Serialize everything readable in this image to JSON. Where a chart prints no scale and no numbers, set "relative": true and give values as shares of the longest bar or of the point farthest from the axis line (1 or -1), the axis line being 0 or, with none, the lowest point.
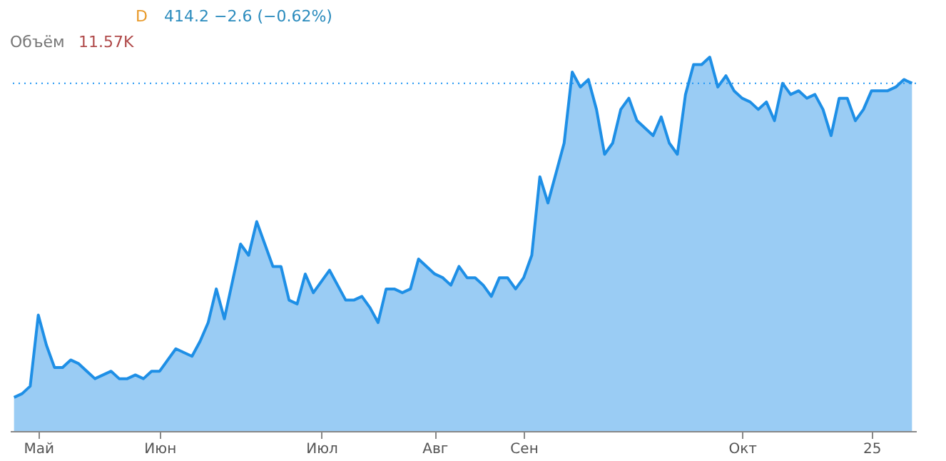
{
  "chart_data": {
    "type": "area",
    "title": "414.2 −2.6 (−0.62%)",
    "annotations": [
      "D",
      "Объём",
      "11.57K"
    ],
    "relative": true,
    "categories": [
      null,
      null,
      null,
      "Май",
      null,
      null,
      null,
      null,
      null,
      null,
      null,
      null,
      null,
      null,
      null,
      null,
      null,
      null,
      "Июн",
      null,
      null,
      null,
      null,
      null,
      null,
      null,
      null,
      null,
      null,
      null,
      null,
      null,
      null,
      null,
      null,
      null,
      null,
      null,
      "Июл",
      null,
      null,
      null,
      null,
      null,
      null,
      null,
      null,
      null,
      null,
      null,
      null,
      null,
      "Авг",
      null,
      null,
      null,
      null,
      null,
      null,
      null,
      null,
      null,
      null,
      "Сен",
      null,
      null,
      null,
      null,
      null,
      null,
      null,
      null,
      null,
      null,
      null,
      null,
      null,
      null,
      null,
      null,
      null,
      null,
      null,
      null,
      null,
      null,
      null,
      null,
      null,
      null,
      "Окт",
      null,
      null,
      null,
      null,
      null,
      null,
      null,
      null,
      null,
      null,
      null,
      null,
      null,
      null,
      null,
      "25",
      null,
      null,
      null,
      null,
      null
    ],
    "series": [
      {
        "color": "#1e8fe6",
        "values": [
          0.09,
          0.1,
          0.12,
          0.31,
          0.23,
          0.17,
          0.17,
          0.19,
          0.18,
          0.16,
          0.14,
          0.15,
          0.16,
          0.14,
          0.14,
          0.15,
          0.14,
          0.16,
          0.16,
          0.19,
          0.22,
          0.21,
          0.2,
          0.24,
          0.29,
          0.38,
          0.3,
          0.4,
          0.5,
          0.47,
          0.56,
          0.5,
          0.44,
          0.44,
          0.35,
          0.34,
          0.42,
          0.37,
          0.4,
          0.43,
          0.39,
          0.35,
          0.35,
          0.36,
          0.33,
          0.29,
          0.38,
          0.38,
          0.37,
          0.38,
          0.46,
          0.44,
          0.42,
          0.41,
          0.39,
          0.44,
          0.41,
          0.41,
          0.39,
          0.36,
          0.41,
          0.41,
          0.38,
          0.41,
          0.47,
          0.68,
          0.61,
          0.69,
          0.77,
          0.96,
          0.92,
          0.94,
          0.86,
          0.74,
          0.77,
          0.86,
          0.89,
          0.83,
          0.81,
          0.79,
          0.84,
          0.77,
          0.74,
          0.9,
          0.98,
          0.98,
          1.0,
          0.92,
          0.95,
          0.91,
          0.89,
          0.88,
          0.86,
          0.88,
          0.83,
          0.93,
          0.9,
          0.91,
          0.89,
          0.9,
          0.86,
          0.79,
          0.89,
          0.89,
          0.83,
          0.86,
          0.91,
          0.91,
          0.91,
          0.92,
          0.94,
          0.93
        ]
      }
    ],
    "ref_lines": [
      {
        "axis": "y",
        "value": 0.93,
        "color": "#2196f3",
        "line_style": "dotted"
      }
    ]
  }
}
